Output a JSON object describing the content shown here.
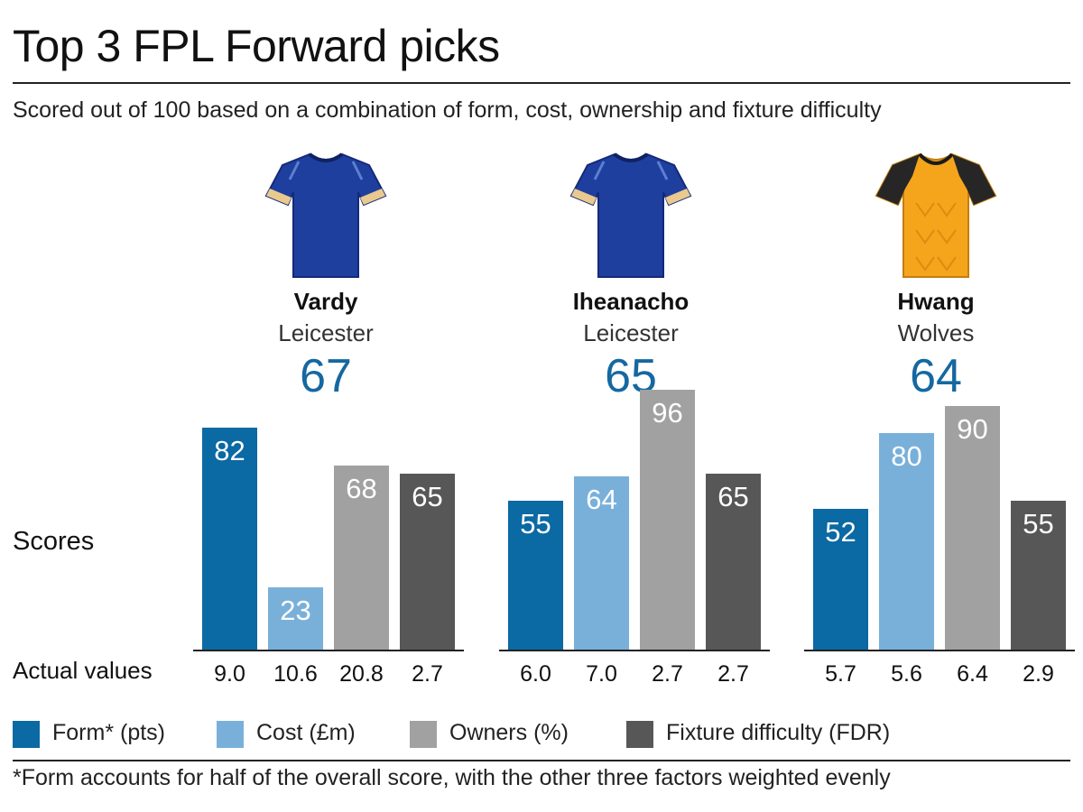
{
  "header": {
    "title": "Top 3 FPL Forward picks",
    "subtitle": "Scored out of 100 based on a combination of form, cost, ownership and fixture difficulty"
  },
  "row_labels": {
    "scores": "Scores",
    "actual": "Actual values"
  },
  "players": [
    {
      "name": "Vardy",
      "club": "Leicester",
      "score": "67",
      "shirt": "leicester-shirt-icon"
    },
    {
      "name": "Iheanacho",
      "club": "Leicester",
      "score": "65",
      "shirt": "leicester-shirt-icon"
    },
    {
      "name": "Hwang",
      "club": "Wolves",
      "score": "64",
      "shirt": "wolves-shirt-icon"
    }
  ],
  "chart_data": {
    "type": "bar",
    "categories": [
      "Form* (pts)",
      "Cost (£m)",
      "Owners (%)",
      "Fixture difficulty (FDR)"
    ],
    "ylim": [
      0,
      100
    ],
    "colors": [
      "#0b69a3",
      "#79b0da",
      "#a1a1a1",
      "#575757"
    ],
    "groups": [
      {
        "player": "Vardy",
        "values": [
          82,
          23,
          68,
          65
        ],
        "actual": [
          "9.0",
          "10.6",
          "20.8",
          "2.7"
        ]
      },
      {
        "player": "Iheanacho",
        "values": [
          55,
          64,
          96,
          65
        ],
        "actual": [
          "6.0",
          "7.0",
          "2.7",
          "2.7"
        ]
      },
      {
        "player": "Hwang",
        "values": [
          52,
          80,
          90,
          55
        ],
        "actual": [
          "5.7",
          "5.6",
          "6.4",
          "2.9"
        ]
      }
    ]
  },
  "legend": [
    {
      "label": "Form* (pts)",
      "color": "#0b69a3"
    },
    {
      "label": "Cost (£m)",
      "color": "#79b0da"
    },
    {
      "label": "Owners (%)",
      "color": "#a1a1a1"
    },
    {
      "label": "Fixture difficulty (FDR)",
      "color": "#575757"
    }
  ],
  "footnote": "*Form accounts for half of the overall score, with the other three factors weighted evenly"
}
